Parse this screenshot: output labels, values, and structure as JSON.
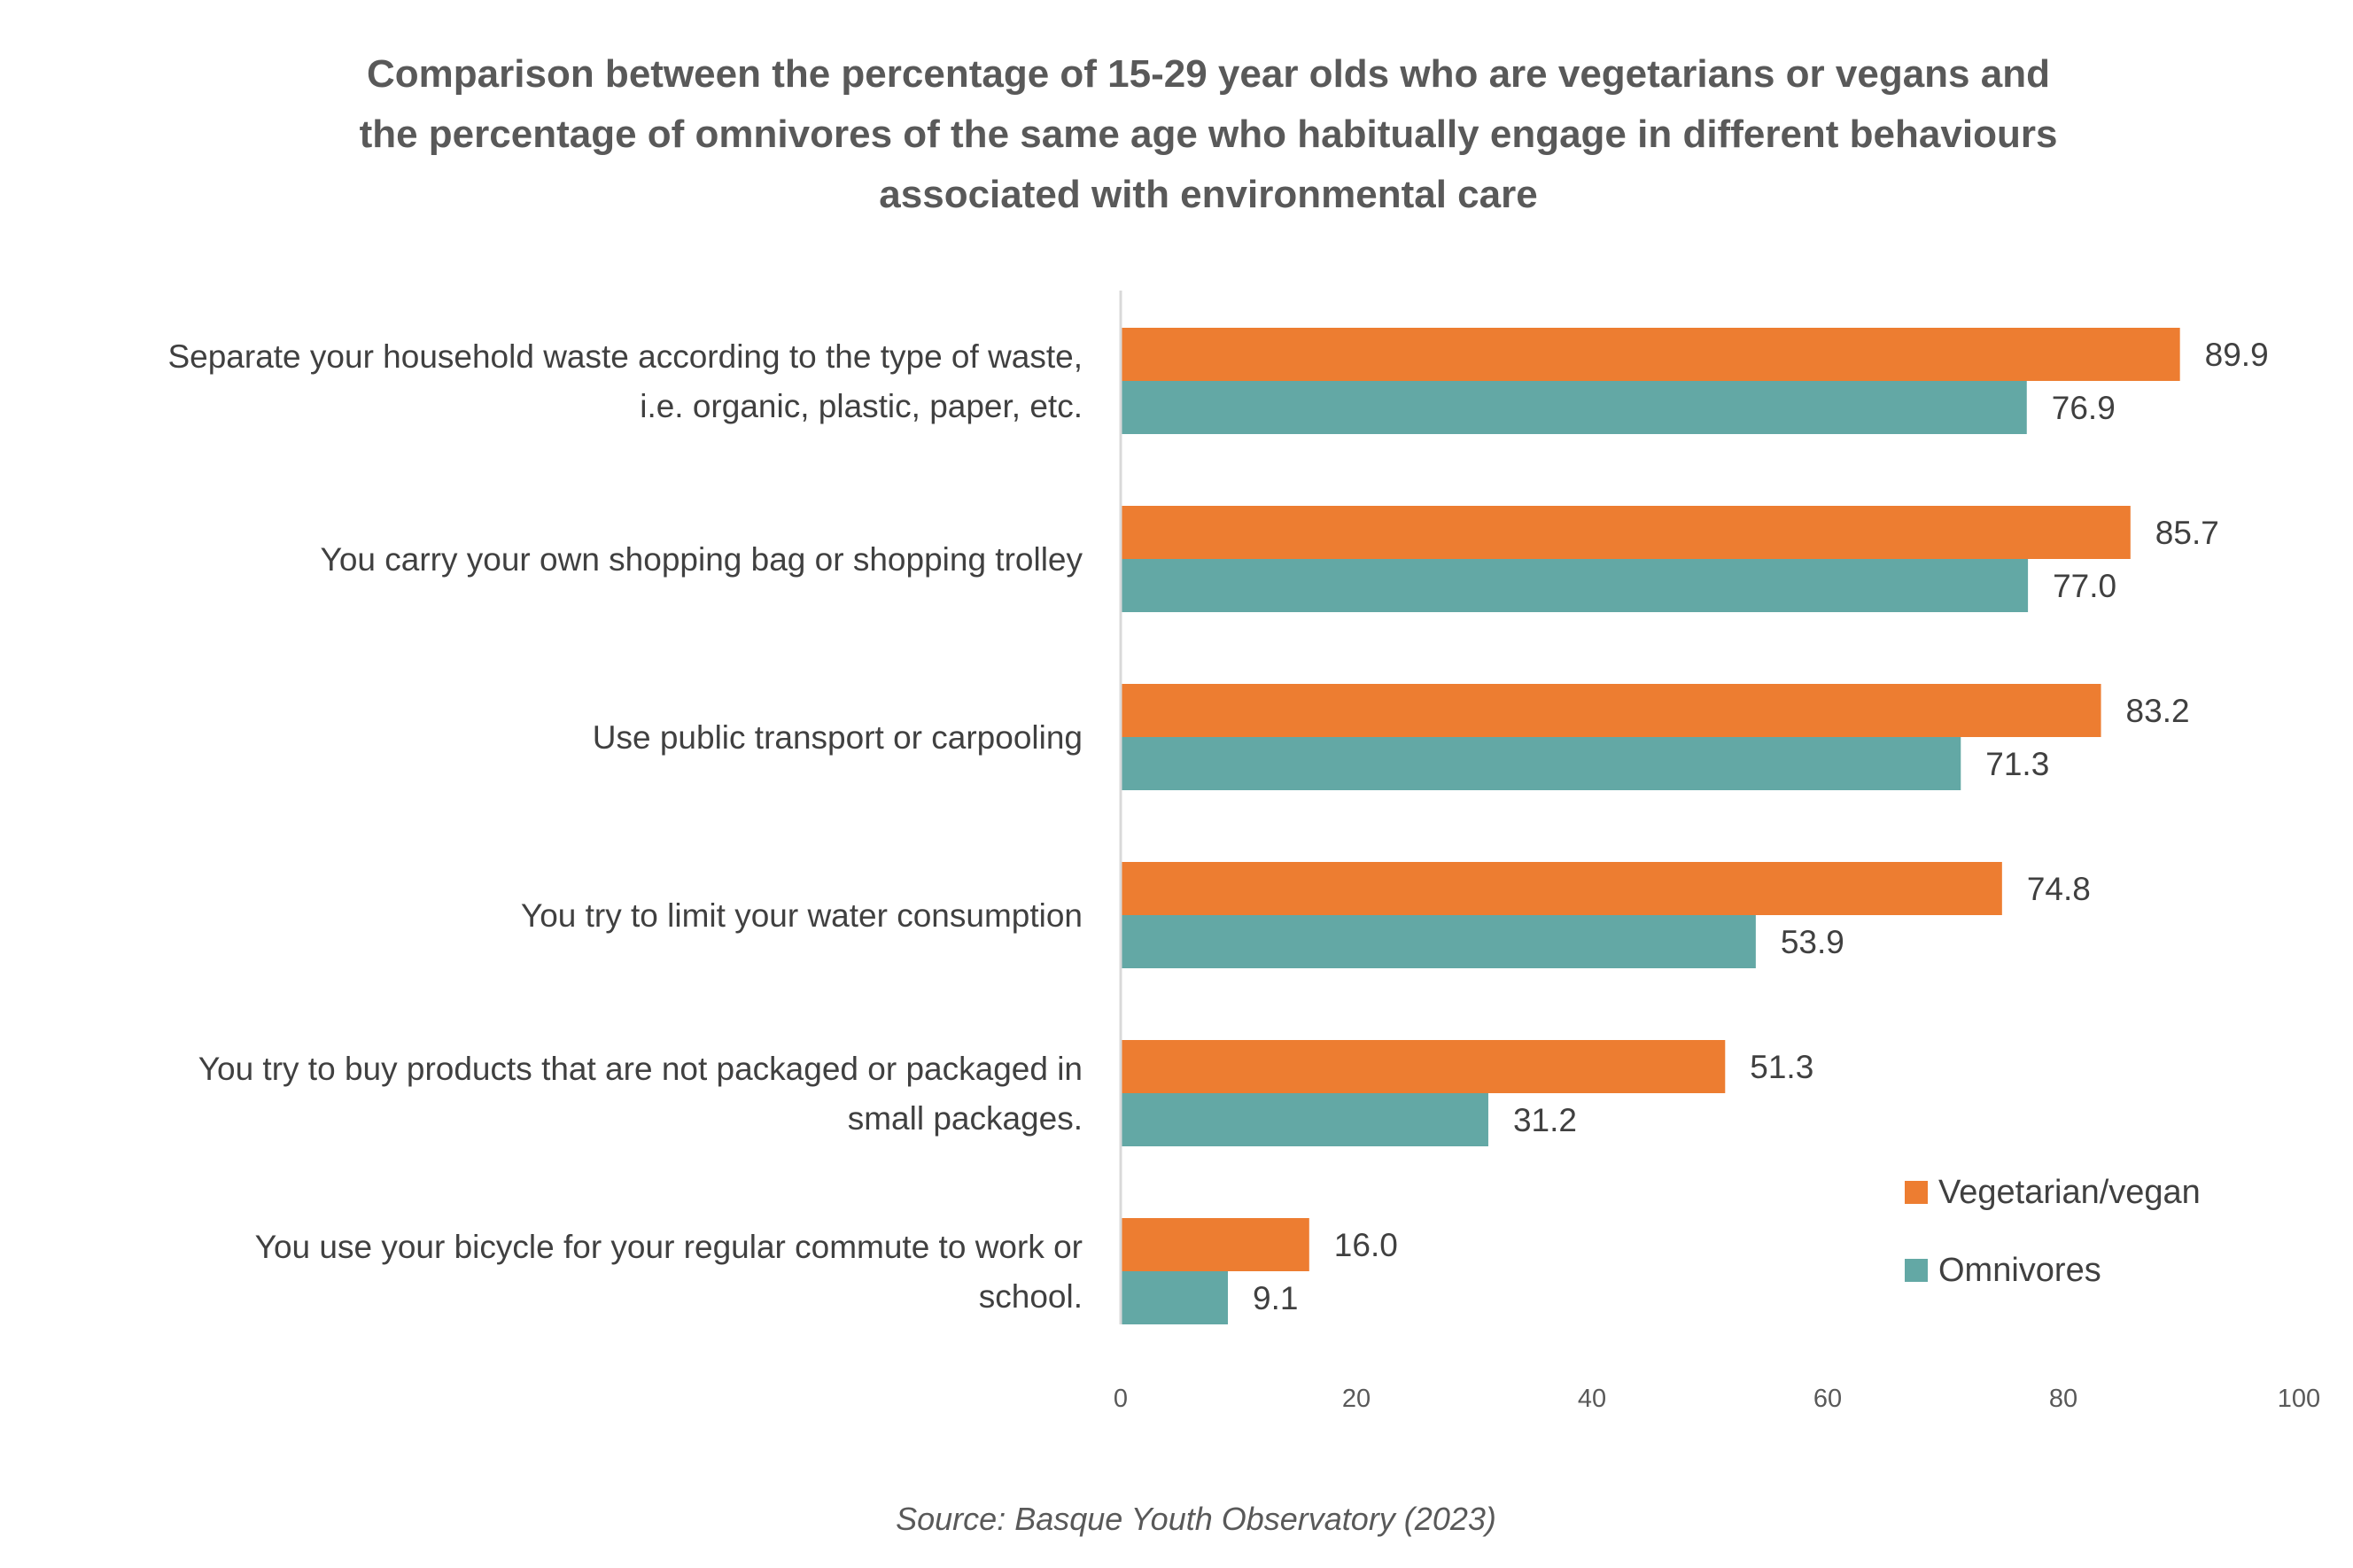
{
  "colors": {
    "vegetarian": "#ED7D31",
    "omnivores": "#63A8A5",
    "axis": "#D9D9D9",
    "text": "#404040"
  },
  "chart_data": {
    "type": "bar",
    "orientation": "horizontal",
    "title_lines": [
      "Comparison between the percentage of 15-29 year olds who are vegetarians or vegans and",
      "the percentage of omnivores of the same age who habitually engage in different behaviours",
      "associated with environmental care"
    ],
    "categories": [
      [
        "Separate your household waste according to the type of waste,",
        "i.e. organic, plastic, paper, etc."
      ],
      [
        "You carry your own shopping bag or shopping trolley"
      ],
      [
        "Use public transport or carpooling"
      ],
      [
        "You try to limit your water consumption"
      ],
      [
        "You try to buy products that are not packaged or packaged in",
        "small packages."
      ],
      [
        "You use your bicycle for your regular commute to work or",
        "school."
      ]
    ],
    "series": [
      {
        "name": "Vegetarian/vegan",
        "values": [
          89.9,
          85.7,
          83.2,
          74.8,
          51.3,
          16.0
        ],
        "labels": [
          "89.9",
          "85.7",
          "83.2",
          "74.8",
          "51.3",
          "16.0"
        ]
      },
      {
        "name": "Omnivores",
        "values": [
          76.9,
          77.0,
          71.3,
          53.9,
          31.2,
          9.1
        ],
        "labels": [
          "76.9",
          "77.0",
          "71.3",
          "53.9",
          "31.2",
          "9.1"
        ]
      }
    ],
    "xlim": [
      0,
      100
    ],
    "xticks": [
      "0",
      "20",
      "40",
      "60",
      "80",
      "100"
    ],
    "grid": false,
    "legend": "right"
  },
  "source": "Source: Basque Youth Observatory (2023)"
}
